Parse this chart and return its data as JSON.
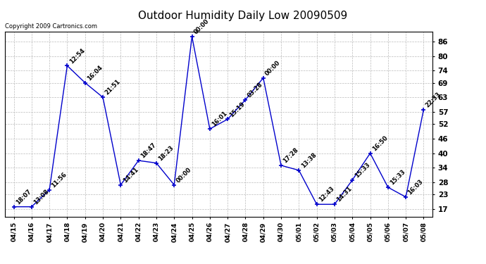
{
  "title": "Outdoor Humidity Daily Low 20090509",
  "copyright": "Copyright 2009 Cartronics.com",
  "x_labels": [
    "04/15",
    "04/16",
    "04/17",
    "04/18",
    "04/19",
    "04/20",
    "04/21",
    "04/22",
    "04/23",
    "04/24",
    "04/25",
    "04/26",
    "04/27",
    "04/28",
    "04/29",
    "04/30",
    "05/01",
    "05/02",
    "05/03",
    "05/04",
    "05/05",
    "05/06",
    "05/07",
    "05/08"
  ],
  "y_values": [
    18,
    18,
    25,
    76,
    69,
    63,
    27,
    37,
    36,
    27,
    88,
    50,
    54,
    62,
    71,
    35,
    33,
    19,
    19,
    29,
    40,
    26,
    22,
    58
  ],
  "point_labels": [
    "18:07",
    "13:08",
    "11:56",
    "12:54",
    "16:04",
    "21:51",
    "14:41",
    "18:47",
    "18:23",
    "00:00",
    "00:00",
    "16:01",
    "15:19",
    "03:28",
    "00:00",
    "17:28",
    "13:38",
    "12:43",
    "14:31",
    "15:33",
    "16:50",
    "15:33",
    "16:03",
    "22:33"
  ],
  "y_ticks": [
    17,
    23,
    28,
    34,
    40,
    46,
    52,
    57,
    63,
    69,
    74,
    80,
    86
  ],
  "y_min": 14,
  "y_max": 90,
  "line_color": "#0000cc",
  "marker_color": "#0000cc",
  "bg_color": "#ffffff",
  "grid_color": "#bbbbbb",
  "title_fontsize": 11,
  "label_fontsize": 6.5,
  "annot_fontsize": 6,
  "copyright_fontsize": 6
}
